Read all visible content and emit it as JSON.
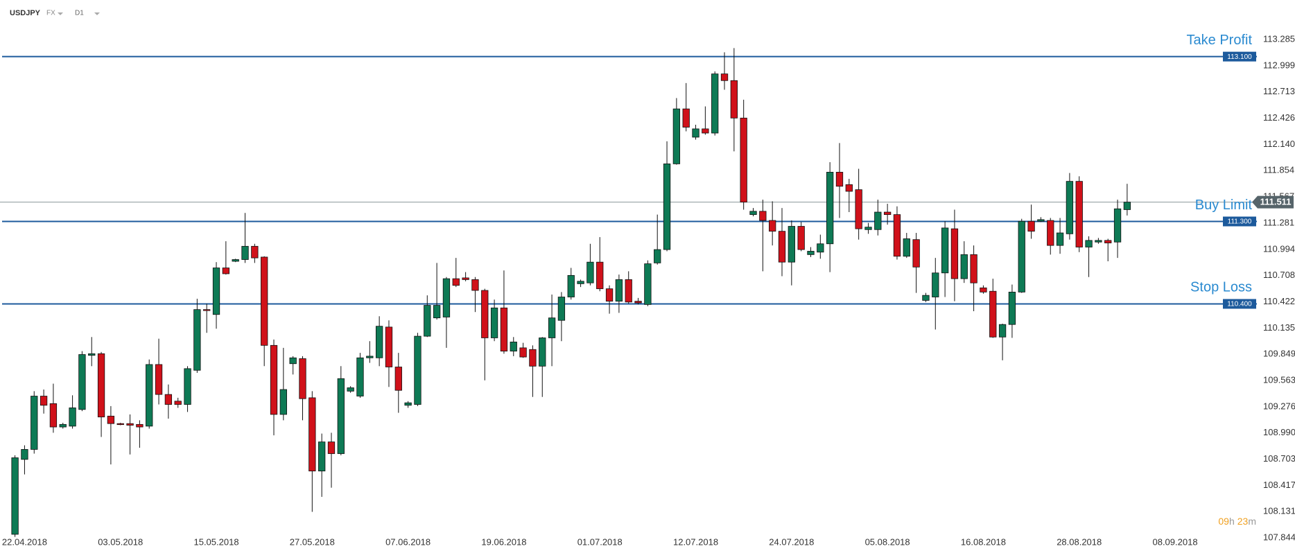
{
  "header": {
    "symbol": "USDJPY",
    "market": "FX",
    "timeframe": "D1"
  },
  "countdown": {
    "hours": "09",
    "hours_unit": "h",
    "minutes": "23",
    "minutes_unit": "m"
  },
  "chart_data": {
    "type": "candlestick",
    "x_labels": [
      "22.04.2018",
      "03.05.2018",
      "15.05.2018",
      "27.05.2018",
      "07.06.2018",
      "19.06.2018",
      "01.07.2018",
      "12.07.2018",
      "24.07.2018",
      "05.08.2018",
      "16.08.2018",
      "28.08.2018",
      "08.09.2018"
    ],
    "open": [
      107.884,
      108.702,
      108.811,
      109.393,
      109.311,
      109.056,
      109.065,
      109.247,
      109.838,
      109.856,
      109.175,
      109.093,
      109.093,
      109.084,
      109.065,
      109.738,
      109.411,
      109.338,
      109.302,
      109.675,
      110.338,
      110.284,
      110.793,
      110.865,
      110.884,
      111.029,
      110.911,
      109.947,
      109.193,
      109.747,
      109.802,
      109.375,
      108.575,
      108.893,
      108.765,
      109.447,
      109.393,
      109.811,
      109.811,
      110.147,
      109.711,
      109.293,
      109.302,
      110.047,
      110.247,
      110.256,
      110.675,
      110.684,
      110.665,
      110.547,
      110.029,
      110.356,
      109.884,
      109.92,
      109.902,
      109.72,
      110.029,
      110.22,
      110.475,
      110.62,
      110.629,
      110.856,
      110.565,
      110.429,
      110.665,
      110.429,
      110.393,
      110.847,
      110.993,
      111.929,
      112.529,
      112.22,
      112.311,
      112.265,
      112.911,
      112.838,
      112.429,
      111.375,
      111.411,
      111.311,
      111.193,
      110.856,
      111.247,
      110.938,
      110.965,
      111.056,
      111.838,
      111.702,
      111.647,
      111.211,
      111.211,
      111.402,
      111.375,
      110.92,
      111.102,
      110.438,
      110.475,
      110.738,
      111.22,
      110.675,
      110.938,
      110.575,
      110.538,
      110.038,
      110.175,
      110.529,
      111.302,
      111.302,
      111.311,
      111.038,
      111.165,
      111.738,
      111.02,
      111.075,
      111.093,
      111.075,
      111.429
    ],
    "high": [
      108.747,
      108.856,
      109.447,
      109.465,
      109.529,
      109.102,
      109.402,
      109.884,
      110.038,
      109.875,
      109.284,
      109.102,
      109.193,
      109.129,
      109.793,
      110.02,
      109.52,
      109.375,
      109.72,
      110.456,
      110.402,
      110.856,
      111.084,
      110.893,
      111.393,
      111.056,
      110.92,
      110.011,
      109.92,
      109.829,
      109.829,
      109.447,
      108.984,
      108.993,
      109.72,
      109.502,
      109.865,
      109.993,
      110.265,
      110.22,
      109.865,
      109.338,
      110.084,
      110.493,
      110.847,
      110.693,
      110.902,
      110.747,
      110.693,
      110.565,
      110.447,
      110.765,
      110.038,
      109.975,
      109.947,
      110.038,
      110.502,
      110.529,
      110.793,
      110.665,
      111.056,
      111.129,
      110.602,
      110.72,
      110.756,
      110.465,
      110.875,
      111.375,
      112.175,
      112.647,
      112.811,
      112.356,
      112.556,
      112.938,
      113.147,
      113.193,
      112.629,
      111.447,
      111.538,
      111.52,
      111.447,
      111.311,
      111.293,
      111.02,
      111.156,
      111.947,
      112.156,
      111.765,
      111.875,
      111.284,
      111.538,
      111.493,
      111.465,
      111.175,
      111.175,
      110.52,
      110.902,
      111.302,
      111.429,
      111.084,
      111.038,
      110.602,
      110.675,
      110.184,
      110.611,
      111.329,
      111.484,
      111.347,
      111.338,
      111.338,
      111.829,
      111.793,
      111.138,
      111.12,
      111.111,
      111.538,
      111.711
    ],
    "low": [
      107.856,
      108.538,
      108.765,
      109.202,
      108.993,
      109.038,
      109.038,
      109.229,
      109.72,
      108.947,
      108.647,
      109.075,
      108.756,
      108.829,
      109.038,
      109.302,
      109.147,
      109.265,
      109.22,
      109.647,
      110.084,
      110.129,
      110.72,
      110.856,
      110.847,
      110.847,
      109.72,
      108.965,
      109.129,
      109.629,
      109.129,
      108.129,
      108.293,
      108.393,
      108.747,
      109.429,
      109.375,
      109.756,
      109.72,
      109.493,
      109.211,
      109.265,
      109.284,
      110.038,
      110.229,
      109.92,
      110.584,
      110.647,
      110.311,
      109.565,
      109.993,
      109.856,
      109.829,
      109.811,
      109.384,
      109.384,
      109.72,
      109.993,
      110.447,
      110.584,
      110.602,
      110.538,
      110.293,
      110.302,
      110.402,
      110.393,
      110.375,
      110.829,
      110.975,
      111.92,
      112.284,
      112.193,
      112.247,
      112.238,
      112.738,
      112.065,
      111.429,
      111.356,
      110.756,
      111.038,
      110.702,
      110.602,
      110.975,
      110.911,
      110.893,
      110.747,
      111.338,
      111.402,
      111.102,
      111.165,
      111.147,
      111.265,
      110.884,
      110.902,
      110.52,
      110.42,
      110.12,
      110.475,
      110.429,
      110.629,
      110.32,
      110.511,
      110.029,
      109.784,
      110.029,
      110.52,
      111.111,
      111.293,
      110.938,
      110.947,
      111.102,
      110.965,
      110.693,
      111.056,
      110.865,
      110.902,
      111.365
    ],
    "close": [
      108.72,
      108.811,
      109.393,
      109.293,
      109.056,
      109.084,
      109.265,
      109.847,
      109.856,
      109.165,
      109.093,
      109.09,
      109.075,
      109.056,
      109.738,
      109.411,
      109.302,
      109.302,
      109.693,
      110.338,
      110.329,
      110.793,
      110.729,
      110.884,
      111.029,
      110.902,
      109.947,
      109.193,
      109.465,
      109.811,
      109.365,
      108.575,
      108.893,
      108.765,
      109.584,
      109.484,
      109.811,
      109.829,
      110.156,
      109.711,
      109.456,
      109.32,
      110.047,
      110.384,
      110.384,
      110.675,
      110.602,
      110.665,
      110.547,
      110.029,
      110.356,
      109.884,
      109.984,
      109.82,
      109.72,
      110.029,
      110.247,
      110.475,
      110.711,
      110.647,
      110.856,
      110.565,
      110.429,
      110.665,
      110.42,
      110.411,
      110.838,
      110.993,
      111.929,
      112.529,
      112.329,
      112.311,
      112.265,
      112.911,
      112.838,
      112.429,
      111.511,
      111.411,
      111.311,
      111.193,
      110.856,
      111.247,
      110.993,
      110.975,
      111.056,
      111.838,
      111.684,
      111.629,
      111.22,
      111.238,
      111.402,
      111.375,
      110.92,
      111.111,
      110.802,
      110.493,
      110.738,
      111.229,
      110.675,
      110.938,
      110.629,
      110.529,
      110.038,
      110.175,
      110.529,
      111.302,
      111.193,
      111.32,
      111.038,
      111.175,
      111.738,
      111.02,
      111.093,
      111.093,
      111.065,
      111.438,
      111.511
    ],
    "up_color": "#0e7a55",
    "down_color": "#d0111a",
    "ylim": [
      107.77,
      113.4
    ],
    "yticks": [
      113.285,
      112.999,
      112.713,
      112.426,
      {
        "value": 112.14,
        "label": "112.140"
      },
      111.854,
      111.567,
      111.281,
      110.994,
      110.708,
      110.422,
      110.135,
      109.849,
      109.563,
      109.276,
      {
        "value": 108.99,
        "label": "108.990"
      },
      108.703,
      108.417,
      108.131,
      107.844
    ],
    "levels": [
      {
        "name": "Take Profit",
        "value": 113.1,
        "label": "113.100",
        "color": "#1c5a9c"
      },
      {
        "name": "Buy Limit",
        "value": 111.3,
        "label": "111.300",
        "color": "#1c5a9c"
      },
      {
        "name": "Stop Loss",
        "value": 110.4,
        "label": "110.400",
        "color": "#1c5a9c"
      }
    ],
    "current_price": {
      "value": 111.511,
      "color": "#56646a"
    }
  }
}
